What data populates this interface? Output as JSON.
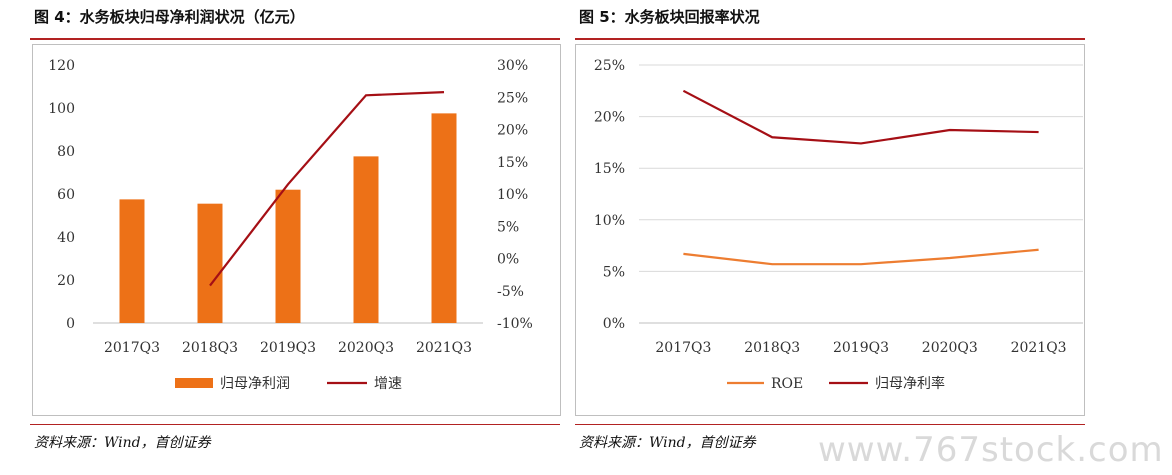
{
  "left": {
    "title": "图 4：水务板块归母净利润状况（亿元）",
    "source": "资料来源：Wind，首创证券"
  },
  "right": {
    "title": "图 5：水务板块回报率状况",
    "source": "资料来源：Wind，首创证券"
  },
  "watermark": "www.767stock.com",
  "colors": {
    "bar": "#ED7117",
    "growth": "#A50F15",
    "roe": "#ED7D31",
    "margin": "#A50F15",
    "rule": "#b22222"
  },
  "chart_data": [
    {
      "type": "bar",
      "categories": [
        "2017Q3",
        "2018Q3",
        "2019Q3",
        "2020Q3",
        "2021Q3"
      ],
      "series": [
        {
          "name": "归母净利润",
          "type": "bar",
          "axis": "left",
          "values": [
            57.5,
            55.5,
            62,
            77.5,
            97.5
          ]
        },
        {
          "name": "增速",
          "type": "line",
          "axis": "right",
          "values": [
            null,
            -4.2,
            11.5,
            25.3,
            25.8
          ]
        }
      ],
      "y_left": {
        "lim": [
          0,
          120
        ],
        "ticks": [
          "0",
          "20",
          "40",
          "60",
          "80",
          "100",
          "120"
        ]
      },
      "y_right": {
        "lim": [
          -10,
          30
        ],
        "ticks": [
          "-10%",
          "-5%",
          "0%",
          "5%",
          "10%",
          "15%",
          "20%",
          "25%",
          "30%"
        ]
      },
      "grid": false,
      "legend": "bottom"
    },
    {
      "type": "line",
      "categories": [
        "2017Q3",
        "2018Q3",
        "2019Q3",
        "2020Q3",
        "2021Q3"
      ],
      "series": [
        {
          "name": "ROE",
          "values": [
            6.7,
            5.7,
            5.7,
            6.3,
            7.1
          ]
        },
        {
          "name": "归母净利率",
          "values": [
            22.5,
            18.0,
            17.4,
            18.7,
            18.5
          ]
        }
      ],
      "y": {
        "lim": [
          0,
          25
        ],
        "ticks": [
          "0%",
          "5%",
          "10%",
          "15%",
          "20%",
          "25%"
        ]
      },
      "grid": true,
      "legend": "bottom"
    }
  ]
}
